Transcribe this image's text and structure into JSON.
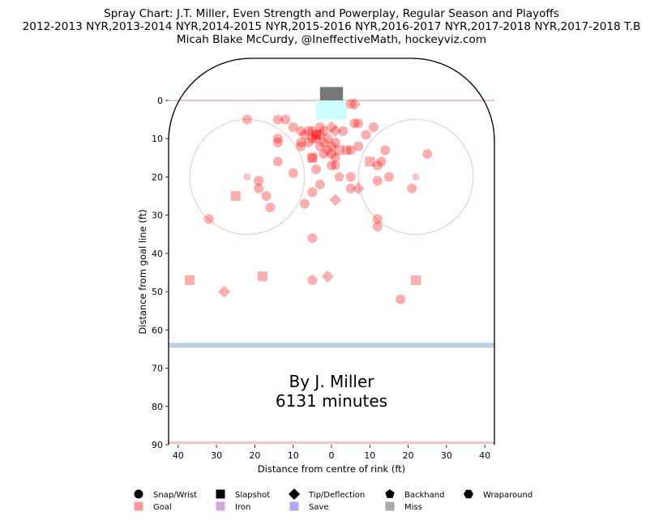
{
  "title_lines": [
    "Spray Chart: J.T. Miller, Even Strength and Powerplay, Regular Season and Playoffs",
    "2012-2013 NYR,2013-2014 NYR,2014-2015 NYR,2015-2016 NYR,2016-2017 NYR,2017-2018 NYR,2017-2018 T.B",
    "Micah Blake McCurdy, @IneffectiveMath, hockeyviz.com"
  ],
  "chart_data": {
    "type": "scatter",
    "title": "Spray Chart: J.T. Miller, Even Strength and Powerplay, Regular Season and Playoffs",
    "xlabel": "Distance from centre of rink (ft)",
    "ylabel": "Distance from goal line (ft)",
    "xlim": [
      42.5,
      -42.5
    ],
    "ylim": [
      90,
      -11
    ],
    "x_ticks": [
      40,
      30,
      20,
      10,
      0,
      10,
      20,
      30,
      40
    ],
    "x_tick_values": [
      40,
      30,
      20,
      10,
      0,
      -10,
      -20,
      -30,
      -40
    ],
    "y_ticks": [
      0,
      10,
      20,
      30,
      40,
      50,
      60,
      70,
      80,
      90
    ],
    "grid": false,
    "legend_position": "bottom",
    "annotation": [
      "By J. Miller",
      "6131 minutes"
    ],
    "colors": {
      "goal": "#ff0000",
      "rink_line": "#000000",
      "blue_line": "#bccfe6",
      "goal_line": "#f2c2c2",
      "circle": "#f4a3a3",
      "crease": "#ccffff",
      "net": "#777777"
    },
    "shot_types": [
      "Snap/Wrist",
      "Slapshot",
      "Tip/Deflection",
      "Backhand",
      "Wraparound"
    ],
    "results": [
      {
        "name": "Goal",
        "color": "#ff9999"
      },
      {
        "name": "Iron",
        "color": "#d9a6d9"
      },
      {
        "name": "Save",
        "color": "#aaaaf5"
      },
      {
        "name": "Miss",
        "color": "#aaaaaa"
      }
    ],
    "series": [
      {
        "name": "Goal",
        "points": [
          {
            "x": 22,
            "y": 5,
            "shape": "circle"
          },
          {
            "x": 14,
            "y": 5,
            "shape": "circle"
          },
          {
            "x": 12,
            "y": 5,
            "shape": "circle"
          },
          {
            "x": 10,
            "y": 7,
            "shape": "circle"
          },
          {
            "x": 8,
            "y": 8,
            "shape": "circle"
          },
          {
            "x": 7,
            "y": 9,
            "shape": "circle"
          },
          {
            "x": 6,
            "y": 8,
            "shape": "circle"
          },
          {
            "x": 5,
            "y": 8,
            "shape": "circle"
          },
          {
            "x": 4,
            "y": 9,
            "shape": "circle"
          },
          {
            "x": 5,
            "y": 10,
            "shape": "circle"
          },
          {
            "x": 4,
            "y": 10,
            "shape": "circle"
          },
          {
            "x": 3,
            "y": 9,
            "shape": "circle"
          },
          {
            "x": 3,
            "y": 7,
            "shape": "circle"
          },
          {
            "x": 2,
            "y": 8,
            "shape": "circle"
          },
          {
            "x": 2,
            "y": 11,
            "shape": "circle"
          },
          {
            "x": 1,
            "y": 10,
            "shape": "circle"
          },
          {
            "x": 0,
            "y": 12,
            "shape": "circle"
          },
          {
            "x": 1,
            "y": 13,
            "shape": "circle"
          },
          {
            "x": 2,
            "y": 14,
            "shape": "circle"
          },
          {
            "x": 3,
            "y": 12,
            "shape": "circle"
          },
          {
            "x": 6,
            "y": 11,
            "shape": "circle"
          },
          {
            "x": 8,
            "y": 11,
            "shape": "circle"
          },
          {
            "x": 8,
            "y": 12,
            "shape": "circle"
          },
          {
            "x": 14,
            "y": 10,
            "shape": "circle"
          },
          {
            "x": 14,
            "y": 11,
            "shape": "circle"
          },
          {
            "x": 14,
            "y": 16,
            "shape": "circle"
          },
          {
            "x": 5,
            "y": 15,
            "shape": "circle"
          },
          {
            "x": 0,
            "y": 14,
            "shape": "circle"
          },
          {
            "x": -1,
            "y": 11,
            "shape": "circle"
          },
          {
            "x": -1,
            "y": 15,
            "shape": "circle"
          },
          {
            "x": 0,
            "y": 17,
            "shape": "circle"
          },
          {
            "x": -4,
            "y": 13,
            "shape": "circle"
          },
          {
            "x": -3,
            "y": 8,
            "shape": "circle"
          },
          {
            "x": -5,
            "y": 13,
            "shape": "circle"
          },
          {
            "x": -7,
            "y": 12,
            "shape": "circle"
          },
          {
            "x": -9,
            "y": 9,
            "shape": "circle"
          },
          {
            "x": -6,
            "y": 6,
            "shape": "circle"
          },
          {
            "x": -7,
            "y": 6,
            "shape": "circle"
          },
          {
            "x": -5,
            "y": 1,
            "shape": "circle"
          },
          {
            "x": -11,
            "y": 7,
            "shape": "circle"
          },
          {
            "x": -14,
            "y": 13,
            "shape": "circle"
          },
          {
            "x": -13,
            "y": 16,
            "shape": "circle"
          },
          {
            "x": -12,
            "y": 17,
            "shape": "circle"
          },
          {
            "x": -15,
            "y": 20,
            "shape": "circle"
          },
          {
            "x": -21,
            "y": 23,
            "shape": "circle"
          },
          {
            "x": -25,
            "y": 14,
            "shape": "circle"
          },
          {
            "x": -12,
            "y": 21,
            "shape": "circle"
          },
          {
            "x": -12,
            "y": 31,
            "shape": "circle"
          },
          {
            "x": -12,
            "y": 33,
            "shape": "circle"
          },
          {
            "x": -5,
            "y": 20,
            "shape": "circle"
          },
          {
            "x": -5,
            "y": 23,
            "shape": "circle"
          },
          {
            "x": 4,
            "y": 18,
            "shape": "circle"
          },
          {
            "x": 3,
            "y": 22,
            "shape": "circle"
          },
          {
            "x": 5,
            "y": 24,
            "shape": "circle"
          },
          {
            "x": 7,
            "y": 27,
            "shape": "circle"
          },
          {
            "x": 10,
            "y": 19,
            "shape": "circle"
          },
          {
            "x": 19,
            "y": 21,
            "shape": "circle"
          },
          {
            "x": 19,
            "y": 23,
            "shape": "circle"
          },
          {
            "x": 17,
            "y": 25,
            "shape": "circle"
          },
          {
            "x": 16,
            "y": 28,
            "shape": "circle"
          },
          {
            "x": 32,
            "y": 31,
            "shape": "circle"
          },
          {
            "x": 5,
            "y": 36,
            "shape": "circle"
          },
          {
            "x": 5,
            "y": 47,
            "shape": "circle"
          },
          {
            "x": -18,
            "y": 52,
            "shape": "circle"
          },
          {
            "x": 25,
            "y": 25,
            "shape": "square"
          },
          {
            "x": 37,
            "y": 47,
            "shape": "square"
          },
          {
            "x": 18,
            "y": 46,
            "shape": "square"
          },
          {
            "x": -22,
            "y": 47,
            "shape": "square"
          },
          {
            "x": -10,
            "y": 16,
            "shape": "square"
          },
          {
            "x": 5,
            "y": 15,
            "shape": "square"
          },
          {
            "x": 4,
            "y": 9,
            "shape": "square"
          },
          {
            "x": -2,
            "y": 13,
            "shape": "square"
          },
          {
            "x": -6,
            "y": 1,
            "shape": "diamond"
          },
          {
            "x": -1,
            "y": 8,
            "shape": "diamond"
          },
          {
            "x": 0,
            "y": 7,
            "shape": "diamond"
          },
          {
            "x": -1,
            "y": 26,
            "shape": "diamond"
          },
          {
            "x": -7,
            "y": 23,
            "shape": "diamond"
          },
          {
            "x": 1,
            "y": 46,
            "shape": "diamond"
          },
          {
            "x": 28,
            "y": 50,
            "shape": "diamond"
          },
          {
            "x": -2,
            "y": 20,
            "shape": "pentagon"
          },
          {
            "x": -1,
            "y": 17,
            "shape": "pentagon"
          }
        ]
      }
    ]
  }
}
